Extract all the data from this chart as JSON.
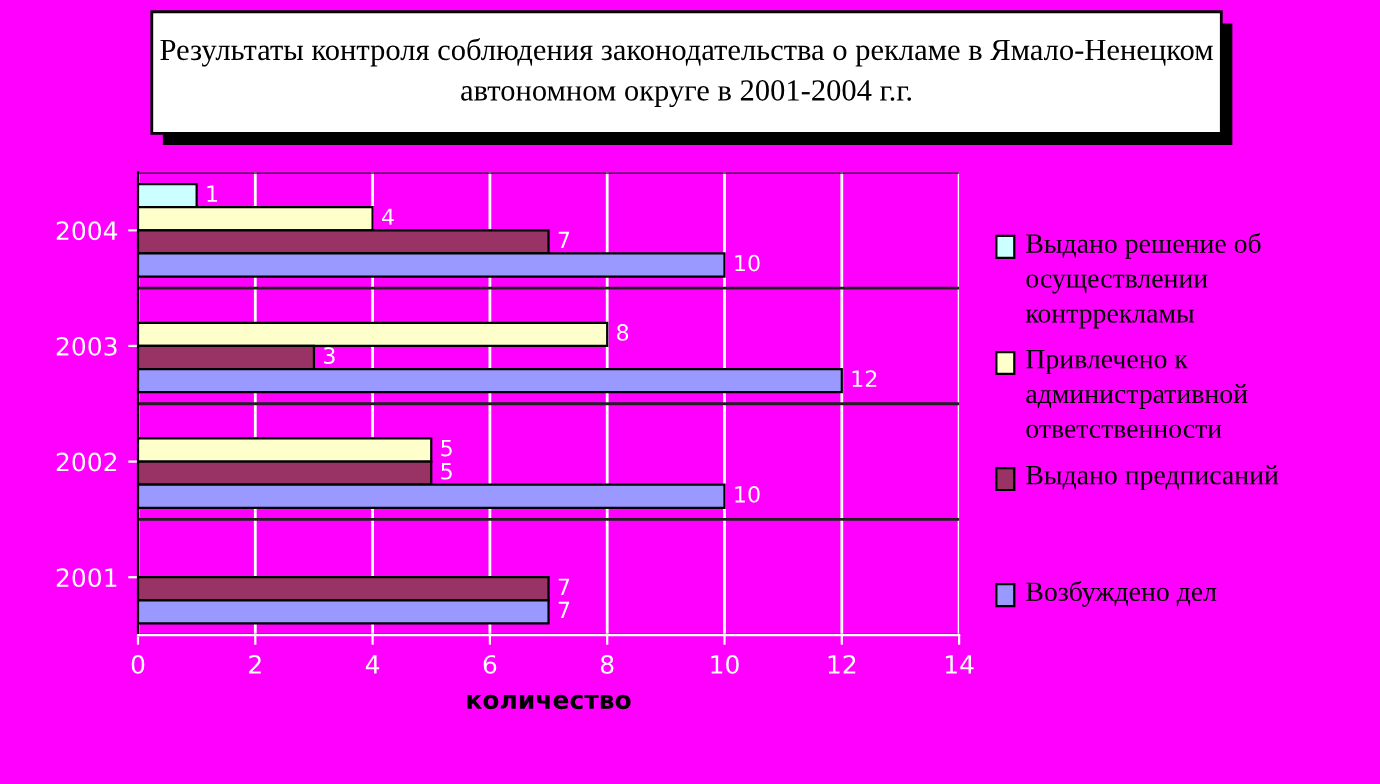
{
  "chart_data": {
    "type": "bar",
    "orientation": "horizontal",
    "title": "Результаты контроля соблюдения законодательства о рекламе в Ямало-Ненецком автономном округе в 2001-2004 г.г.",
    "xlabel": "количество",
    "categories": [
      "2004",
      "2003",
      "2002",
      "2001"
    ],
    "series": [
      {
        "name": "Выдано решение об осуществлении контррекламы",
        "color": "#ccffff",
        "values": [
          1,
          null,
          null,
          null
        ]
      },
      {
        "name": "Привлечено к административной ответственности",
        "color": "#ffffcc",
        "values": [
          4,
          8,
          5,
          null
        ]
      },
      {
        "name": "Выдано предписаний",
        "color": "#993366",
        "values": [
          7,
          3,
          5,
          7
        ]
      },
      {
        "name": "Возбуждено дел",
        "color": "#9999ff",
        "values": [
          10,
          12,
          10,
          7
        ]
      }
    ],
    "xlim": [
      0,
      14
    ],
    "xticks": [
      0,
      2,
      4,
      6,
      8,
      10,
      12,
      14
    ],
    "grid": true,
    "legend": "right",
    "data_labels": true
  }
}
